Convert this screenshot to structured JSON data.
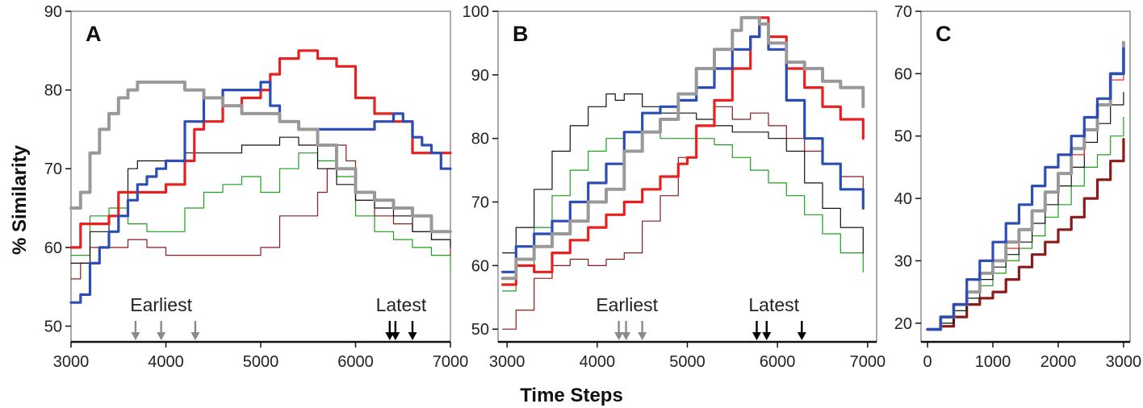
{
  "figure": {
    "ylabel": "% Similarity",
    "xlabel": "Time Steps"
  },
  "chart_data": [
    {
      "type": "line",
      "title": "A",
      "xlim": [
        3000,
        7000
      ],
      "ylim": [
        48,
        90
      ],
      "xticks": [
        3000,
        4000,
        5000,
        6000,
        7000
      ],
      "yticks": [
        50,
        60,
        70,
        80,
        90
      ],
      "annotations": [
        {
          "text": "Earliest",
          "x": 3950
        },
        {
          "text": "Latest",
          "x": 6480
        }
      ],
      "arrows": [
        {
          "x": 3680,
          "color": "#8a8a8a"
        },
        {
          "x": 3950,
          "color": "#8a8a8a"
        },
        {
          "x": 4310,
          "color": "#8a8a8a"
        },
        {
          "x": 6360,
          "color": "#000000"
        },
        {
          "x": 6420,
          "color": "#000000"
        },
        {
          "x": 6600,
          "color": "#000000"
        }
      ],
      "series": [
        {
          "color": "#1f9e1f",
          "width": 1.2,
          "x": [
            3000,
            3200,
            3400,
            3600,
            3800,
            4000,
            4200,
            4400,
            4600,
            4800,
            5000,
            5200,
            5400,
            5600,
            5800,
            6000,
            6200,
            6400,
            6600,
            6800,
            7000
          ],
          "y": [
            59,
            64,
            65,
            63,
            62,
            62,
            65,
            67,
            68,
            69,
            67,
            70,
            72,
            71,
            69,
            64,
            62,
            61,
            60,
            59,
            57
          ]
        },
        {
          "color": "#8b1a1a",
          "width": 1.2,
          "x": [
            3000,
            3100,
            3200,
            3400,
            3600,
            3800,
            4000,
            4200,
            4400,
            4600,
            4800,
            5000,
            5200,
            5400,
            5600,
            5700,
            5800,
            5900,
            6000,
            6200,
            6400,
            6600,
            6800,
            7000
          ],
          "y": [
            56,
            58,
            60,
            60,
            61,
            60,
            59,
            59,
            59,
            59,
            59,
            60,
            64,
            64,
            67,
            70,
            73,
            71,
            66,
            64,
            63,
            62,
            61,
            59
          ]
        },
        {
          "color": "#111111",
          "width": 1.2,
          "x": [
            3000,
            3200,
            3400,
            3600,
            3700,
            3800,
            4000,
            4200,
            4400,
            4600,
            4800,
            5000,
            5200,
            5400,
            5600,
            5800,
            6000,
            6200,
            6400,
            6600,
            6800,
            7000
          ],
          "y": [
            58,
            62,
            64,
            70,
            71,
            71,
            71,
            72,
            72,
            72,
            73,
            73,
            74,
            73,
            70,
            68,
            66,
            65,
            64,
            62,
            61,
            60
          ]
        },
        {
          "color": "#e82020",
          "width": 3.2,
          "x": [
            3000,
            3100,
            3200,
            3400,
            3500,
            3600,
            3800,
            4000,
            4200,
            4300,
            4400,
            4600,
            4800,
            5000,
            5100,
            5200,
            5300,
            5400,
            5600,
            5800,
            6000,
            6200,
            6400,
            6600,
            6800,
            7000
          ],
          "y": [
            60,
            63,
            63,
            64,
            67,
            67,
            67,
            68,
            71,
            75,
            76,
            78,
            79,
            80,
            82,
            84,
            84,
            85,
            84,
            83,
            79,
            77,
            76,
            72,
            72,
            72
          ]
        },
        {
          "color": "#2b4db5",
          "width": 3.2,
          "x": [
            3000,
            3100,
            3200,
            3300,
            3400,
            3500,
            3600,
            3700,
            3800,
            3900,
            4000,
            4200,
            4400,
            4600,
            4800,
            5000,
            5100,
            5200,
            5400,
            5600,
            5800,
            6000,
            6200,
            6400,
            6500,
            6600,
            6700,
            6800,
            6900,
            7000
          ],
          "y": [
            53,
            54,
            58,
            60,
            62,
            64,
            66,
            68,
            69,
            70,
            71,
            76,
            79,
            80,
            80,
            81,
            78,
            76,
            75,
            75,
            75,
            75,
            76,
            77,
            76,
            74,
            73,
            72,
            70,
            70
          ]
        },
        {
          "color": "#999999",
          "width": 4,
          "x": [
            3000,
            3100,
            3200,
            3300,
            3400,
            3500,
            3600,
            3700,
            3800,
            3900,
            4000,
            4200,
            4400,
            4600,
            4800,
            5000,
            5200,
            5400,
            5600,
            5800,
            6000,
            6200,
            6400,
            6600,
            6800,
            7000
          ],
          "y": [
            65,
            67,
            72,
            75,
            77,
            79,
            80,
            81,
            81,
            81,
            81,
            80,
            79,
            78,
            77,
            77,
            76,
            75,
            73,
            70,
            67,
            66,
            65,
            64,
            62,
            62
          ]
        }
      ]
    },
    {
      "type": "line",
      "title": "B",
      "xlim": [
        2900,
        7100
      ],
      "ylim": [
        48,
        100
      ],
      "xticks": [
        3000,
        4000,
        5000,
        6000,
        7000
      ],
      "yticks": [
        50,
        60,
        70,
        80,
        90,
        100
      ],
      "annotations": [
        {
          "text": "Earliest",
          "x": 4330
        },
        {
          "text": "Latest",
          "x": 5960
        }
      ],
      "arrows": [
        {
          "x": 4240,
          "color": "#8a8a8a"
        },
        {
          "x": 4320,
          "color": "#8a8a8a"
        },
        {
          "x": 4500,
          "color": "#8a8a8a"
        },
        {
          "x": 5770,
          "color": "#000000"
        },
        {
          "x": 5880,
          "color": "#000000"
        },
        {
          "x": 6270,
          "color": "#000000"
        }
      ],
      "series": [
        {
          "color": "#8b1a1a",
          "width": 1.2,
          "x": [
            2950,
            3100,
            3300,
            3500,
            3700,
            3900,
            4100,
            4300,
            4500,
            4700,
            4900,
            5100,
            5300,
            5500,
            5700,
            5900,
            6100,
            6300,
            6500,
            6700,
            6950
          ],
          "y": [
            50,
            53,
            58,
            60,
            61,
            60,
            61,
            62,
            67,
            71,
            77,
            82,
            85,
            83,
            84,
            82,
            80,
            78,
            76,
            74,
            71
          ]
        },
        {
          "color": "#1f9e1f",
          "width": 1.2,
          "x": [
            2950,
            3100,
            3300,
            3500,
            3700,
            3900,
            4100,
            4300,
            4500,
            4700,
            4900,
            5100,
            5300,
            5500,
            5700,
            5900,
            6100,
            6300,
            6500,
            6700,
            6950
          ],
          "y": [
            56,
            60,
            66,
            71,
            75,
            78,
            80,
            81,
            81,
            80,
            80,
            80,
            79,
            77,
            75,
            73,
            71,
            68,
            65,
            62,
            59
          ]
        },
        {
          "color": "#111111",
          "width": 1.2,
          "x": [
            2950,
            3100,
            3300,
            3500,
            3700,
            3900,
            4100,
            4200,
            4300,
            4500,
            4700,
            4900,
            5100,
            5300,
            5500,
            5700,
            5900,
            6100,
            6300,
            6500,
            6700,
            6950
          ],
          "y": [
            62,
            66,
            72,
            78,
            82,
            85,
            87,
            86,
            87,
            85,
            84,
            84,
            83,
            82,
            81,
            81,
            80,
            78,
            73,
            69,
            66,
            62
          ]
        },
        {
          "color": "#e82020",
          "width": 3.2,
          "x": [
            2950,
            3100,
            3300,
            3500,
            3700,
            3900,
            4100,
            4300,
            4500,
            4700,
            4900,
            5000,
            5100,
            5300,
            5500,
            5700,
            5800,
            5900,
            6100,
            6300,
            6500,
            6700,
            6950
          ],
          "y": [
            57,
            60,
            59,
            62,
            64,
            66,
            68,
            70,
            72,
            74,
            76,
            77,
            82,
            86,
            91,
            96,
            99,
            96,
            91,
            88,
            85,
            83,
            80
          ]
        },
        {
          "color": "#2b4db5",
          "width": 3.2,
          "x": [
            2950,
            3100,
            3300,
            3500,
            3700,
            3900,
            4100,
            4300,
            4500,
            4700,
            4900,
            5100,
            5300,
            5500,
            5700,
            5800,
            5900,
            6100,
            6300,
            6500,
            6700,
            6950
          ],
          "y": [
            59,
            63,
            65,
            67,
            70,
            73,
            76,
            81,
            84,
            85,
            86,
            88,
            91,
            94,
            96,
            98,
            94,
            86,
            80,
            76,
            72,
            69
          ]
        },
        {
          "color": "#999999",
          "width": 4,
          "x": [
            2950,
            3100,
            3300,
            3500,
            3700,
            3900,
            4100,
            4300,
            4500,
            4700,
            4900,
            5100,
            5300,
            5500,
            5600,
            5700,
            5800,
            5900,
            6100,
            6300,
            6500,
            6700,
            6950
          ],
          "y": [
            58,
            61,
            63,
            65,
            67,
            70,
            72,
            78,
            81,
            83,
            87,
            91,
            94,
            97,
            99,
            99,
            98,
            95,
            92,
            91,
            89,
            88,
            85
          ]
        }
      ]
    },
    {
      "type": "line",
      "title": "C",
      "xlim": [
        -100,
        3100
      ],
      "ylim": [
        17,
        70
      ],
      "xticks": [
        0,
        1000,
        2000,
        3000
      ],
      "yticks": [
        20,
        30,
        40,
        50,
        60,
        70
      ],
      "series": [
        {
          "color": "#8b1a1a",
          "width": 3.2,
          "x": [
            0,
            200,
            400,
            600,
            800,
            1000,
            1200,
            1400,
            1600,
            1800,
            2000,
            2200,
            2400,
            2600,
            2800,
            3000
          ],
          "y": [
            19,
            19.5,
            21,
            23,
            24,
            25,
            27,
            29,
            31,
            33,
            35,
            37,
            40,
            43,
            46,
            49.5
          ]
        },
        {
          "color": "#1f9e1f",
          "width": 1.2,
          "x": [
            0,
            200,
            400,
            600,
            800,
            1000,
            1200,
            1400,
            1600,
            1800,
            2000,
            2200,
            2400,
            2600,
            2800,
            3000
          ],
          "y": [
            19,
            20,
            22,
            24,
            26,
            28,
            30,
            32,
            34,
            37,
            39,
            42,
            45,
            47,
            50,
            53
          ]
        },
        {
          "color": "#111111",
          "width": 1.2,
          "x": [
            0,
            200,
            400,
            600,
            800,
            1000,
            1200,
            1400,
            1600,
            1800,
            2000,
            2200,
            2400,
            2600,
            2800,
            3000
          ],
          "y": [
            19,
            20,
            22,
            24,
            27,
            29,
            31,
            33,
            36,
            39,
            42,
            45,
            49,
            52,
            55,
            57
          ]
        },
        {
          "color": "#e82020",
          "width": 1.2,
          "x": [
            0,
            200,
            400,
            600,
            800,
            1000,
            1200,
            1400,
            1600,
            1800,
            2000,
            2200,
            2400,
            2600,
            2800,
            3000
          ],
          "y": [
            19,
            21,
            23,
            25,
            28,
            30,
            32,
            35,
            38,
            41,
            44,
            47,
            51,
            55,
            59,
            62
          ]
        },
        {
          "color": "#999999",
          "width": 4,
          "x": [
            0,
            200,
            400,
            600,
            800,
            1000,
            1200,
            1400,
            1600,
            1800,
            2000,
            2200,
            2400,
            2600,
            2800,
            3000
          ],
          "y": [
            19,
            21,
            23,
            25,
            28,
            30,
            33,
            35,
            38,
            41,
            44,
            48,
            51,
            55,
            60,
            65
          ]
        },
        {
          "color": "#2b4db5",
          "width": 3.2,
          "x": [
            0,
            200,
            400,
            600,
            800,
            1000,
            1200,
            1400,
            1600,
            1800,
            2000,
            2200,
            2400,
            2600,
            2800,
            3000
          ],
          "y": [
            19,
            21,
            23,
            27,
            30,
            33,
            36,
            39,
            42,
            45,
            47,
            50,
            53,
            56,
            60,
            64
          ]
        }
      ]
    }
  ]
}
